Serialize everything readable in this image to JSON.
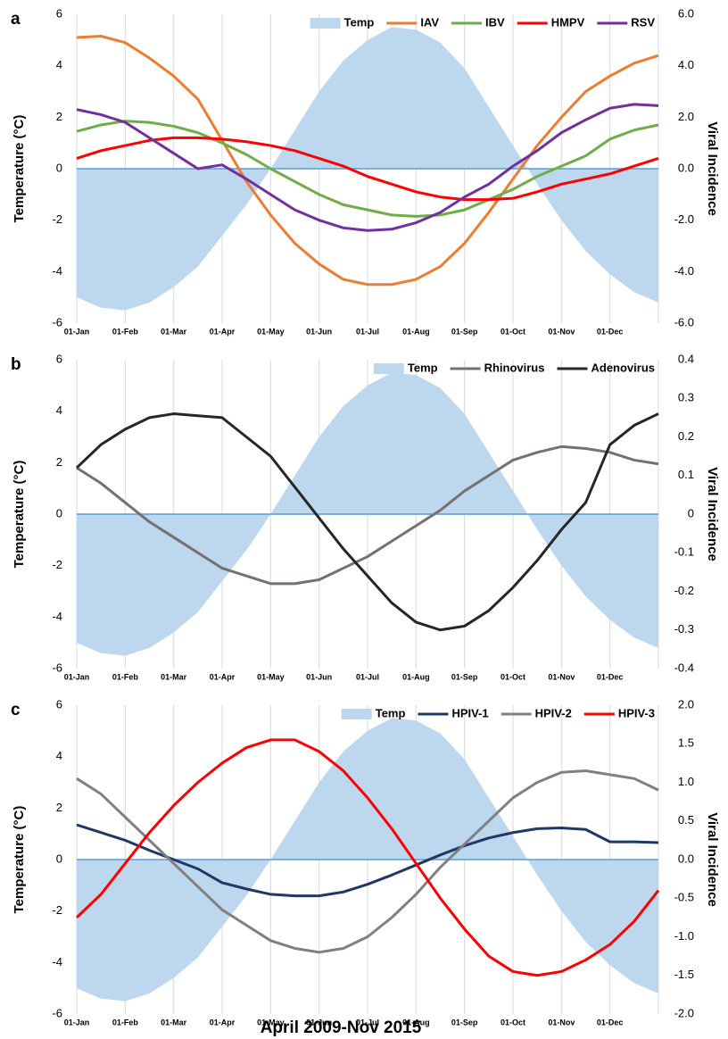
{
  "chart_data": [
    {
      "type": "line",
      "panel": "a",
      "ylabel": "Temperature (°C)",
      "y2label": "Viral Incidence",
      "grid": "x",
      "legend": "top-right",
      "categories": [
        "01-Jan",
        null,
        "01-Feb",
        null,
        "01-Mar",
        null,
        "01-Apr",
        null,
        "01-May",
        null,
        "01-Jun",
        null,
        "01-Jul",
        null,
        "01-Aug",
        null,
        "01-Sep",
        null,
        "01-Oct",
        null,
        "01-Nov",
        null,
        "01-Dec",
        null,
        null
      ],
      "ylim": [
        -6,
        6
      ],
      "yticks": [
        -6,
        -4,
        -2,
        0,
        2,
        4,
        6
      ],
      "y2lim": [
        -6,
        6
      ],
      "y2ticks": [
        {
          "value": -6,
          "label": "-6.0"
        },
        {
          "value": -4,
          "label": "-4.0"
        },
        {
          "value": -2,
          "label": "-2.0"
        },
        {
          "value": 0,
          "label": "0.0"
        },
        {
          "value": 2,
          "label": "2.0"
        },
        {
          "value": 4,
          "label": "4.0"
        },
        {
          "value": 6,
          "label": "6.0"
        }
      ],
      "series": [
        {
          "name": "Temp",
          "kind": "area",
          "color": "#bdd7ee",
          "values": [
            -5.0,
            -5.4,
            -5.5,
            -5.2,
            -4.6,
            -3.8,
            -2.6,
            -1.4,
            0.0,
            1.5,
            3.0,
            4.2,
            5.0,
            5.5,
            5.4,
            4.9,
            3.9,
            2.4,
            0.9,
            -0.6,
            -2.0,
            -3.2,
            -4.1,
            -4.8,
            -5.2
          ]
        },
        {
          "name": "IAV",
          "color": "#ed7d31",
          "axis": "y2",
          "values": [
            5.1,
            5.15,
            4.9,
            4.3,
            3.6,
            2.7,
            1.1,
            -0.5,
            -1.8,
            -2.9,
            -3.7,
            -4.3,
            -4.5,
            -4.5,
            -4.3,
            -3.8,
            -2.9,
            -1.7,
            -0.4,
            0.9,
            2.0,
            3.0,
            3.6,
            4.1,
            4.4
          ]
        },
        {
          "name": "IBV",
          "color": "#70ad47",
          "axis": "y2",
          "values": [
            1.45,
            1.7,
            1.85,
            1.8,
            1.65,
            1.4,
            1.0,
            0.55,
            0.0,
            -0.5,
            -1.0,
            -1.4,
            -1.6,
            -1.8,
            -1.85,
            -1.8,
            -1.6,
            -1.2,
            -0.8,
            -0.3,
            0.1,
            0.5,
            1.15,
            1.5,
            1.7
          ]
        },
        {
          "name": "HMPV",
          "color": "#ff0000",
          "axis": "y2",
          "values": [
            0.4,
            0.7,
            0.9,
            1.1,
            1.2,
            1.2,
            1.15,
            1.05,
            0.9,
            0.7,
            0.4,
            0.1,
            -0.3,
            -0.6,
            -0.9,
            -1.1,
            -1.2,
            -1.2,
            -1.15,
            -0.9,
            -0.6,
            -0.4,
            -0.2,
            0.1,
            0.4
          ]
        },
        {
          "name": "RSV",
          "color": "#7030a0",
          "axis": "y2",
          "values": [
            2.3,
            2.1,
            1.8,
            1.2,
            0.6,
            0.0,
            0.15,
            -0.4,
            -1.0,
            -1.6,
            -2.0,
            -2.3,
            -2.4,
            -2.35,
            -2.1,
            -1.7,
            -1.1,
            -0.6,
            0.1,
            0.7,
            1.4,
            1.9,
            2.35,
            2.5,
            2.45
          ]
        }
      ]
    },
    {
      "type": "line",
      "panel": "b",
      "ylabel": "Temperature (°C)",
      "y2label": "Viral Incidence",
      "grid": "x",
      "legend": "top-right",
      "categories": [
        "01-Jan",
        null,
        "01-Feb",
        null,
        "01-Mar",
        null,
        "01-Apr",
        null,
        "01-May",
        null,
        "01-Jun",
        null,
        "01-Jul",
        null,
        "01-Aug",
        null,
        "01-Sep",
        null,
        "01-Oct",
        null,
        "01-Nov",
        null,
        "01-Dec",
        null,
        null
      ],
      "ylim": [
        -6,
        6
      ],
      "yticks": [
        -6,
        -4,
        -2,
        0,
        2,
        4,
        6
      ],
      "y2lim": [
        -0.4,
        0.4
      ],
      "y2ticks": [
        -0.4,
        -0.3,
        -0.2,
        -0.1,
        0,
        0.1,
        0.2,
        0.3,
        0.4
      ],
      "series": [
        {
          "name": "Temp",
          "kind": "area",
          "color": "#bdd7ee",
          "values": [
            -5.0,
            -5.4,
            -5.5,
            -5.2,
            -4.6,
            -3.8,
            -2.6,
            -1.4,
            0.0,
            1.5,
            3.0,
            4.2,
            5.0,
            5.5,
            5.4,
            4.9,
            3.9,
            2.4,
            0.9,
            -0.6,
            -2.0,
            -3.2,
            -4.1,
            -4.8,
            -5.2
          ]
        },
        {
          "name": "Rhinovirus",
          "color": "#767171",
          "axis": "y2",
          "values": [
            0.12,
            0.08,
            0.03,
            -0.02,
            -0.06,
            -0.1,
            -0.14,
            -0.16,
            -0.18,
            -0.18,
            -0.17,
            -0.14,
            -0.11,
            -0.07,
            -0.03,
            0.01,
            0.06,
            0.1,
            0.14,
            0.16,
            0.175,
            0.17,
            0.16,
            0.14,
            0.13
          ]
        },
        {
          "name": "Adenovirus",
          "color": "#262626",
          "axis": "y2",
          "values": [
            0.12,
            0.18,
            0.22,
            0.25,
            0.26,
            0.255,
            0.25,
            0.2,
            0.15,
            0.07,
            -0.01,
            -0.09,
            -0.16,
            -0.23,
            -0.28,
            -0.3,
            -0.29,
            -0.25,
            -0.19,
            -0.12,
            -0.04,
            0.03,
            0.18,
            0.23,
            0.26
          ]
        }
      ]
    },
    {
      "type": "line",
      "panel": "c",
      "ylabel": "Temperature (°C)",
      "y2label": "Viral Incidence",
      "grid": "x",
      "legend": "top-right",
      "categories": [
        "01-Jan",
        null,
        "01-Feb",
        null,
        "01-Mar",
        null,
        "01-Apr",
        null,
        "01-May",
        null,
        "01-Jun",
        null,
        "01-Jul",
        null,
        "01-Aug",
        null,
        "01-Sep",
        null,
        "01-Oct",
        null,
        "01-Nov",
        null,
        "01-Dec",
        null,
        null
      ],
      "ylim": [
        -6,
        6
      ],
      "yticks": [
        -6,
        -4,
        -2,
        0,
        2,
        4,
        6
      ],
      "y2lim": [
        -2,
        2
      ],
      "y2ticks": [
        {
          "value": -2,
          "label": "-2.0"
        },
        {
          "value": -1.5,
          "label": "-1.5"
        },
        {
          "value": -1,
          "label": "-1.0"
        },
        {
          "value": -0.5,
          "label": "-0.5"
        },
        {
          "value": 0,
          "label": "0.0"
        },
        {
          "value": 0.5,
          "label": "0.5"
        },
        {
          "value": 1,
          "label": "1.0"
        },
        {
          "value": 1.5,
          "label": "1.5"
        },
        {
          "value": 2,
          "label": "2.0"
        }
      ],
      "series": [
        {
          "name": "Temp",
          "kind": "area",
          "color": "#bdd7ee",
          "values": [
            -5.0,
            -5.4,
            -5.5,
            -5.2,
            -4.6,
            -3.8,
            -2.6,
            -1.4,
            0.0,
            1.5,
            3.0,
            4.2,
            5.0,
            5.5,
            5.4,
            4.9,
            3.9,
            2.4,
            0.9,
            -0.6,
            -2.0,
            -3.2,
            -4.1,
            -4.8,
            -5.2
          ]
        },
        {
          "name": "HPIV-1",
          "color": "#203864",
          "axis": "y2",
          "values": [
            0.45,
            0.35,
            0.25,
            0.12,
            0.0,
            -0.12,
            -0.3,
            -0.38,
            -0.45,
            -0.47,
            -0.47,
            -0.42,
            -0.32,
            -0.2,
            -0.07,
            0.06,
            0.18,
            0.28,
            0.35,
            0.4,
            0.41,
            0.39,
            0.23,
            0.23,
            0.22
          ]
        },
        {
          "name": "HPIV-2",
          "color": "#808080",
          "axis": "y2",
          "values": [
            1.05,
            0.85,
            0.55,
            0.25,
            -0.05,
            -0.35,
            -0.65,
            -0.85,
            -1.05,
            -1.15,
            -1.2,
            -1.15,
            -1.0,
            -0.75,
            -0.45,
            -0.1,
            0.2,
            0.5,
            0.8,
            1.0,
            1.13,
            1.15,
            1.1,
            1.05,
            0.9
          ]
        },
        {
          "name": "HPIV-3",
          "color": "#ff0000",
          "axis": "y2",
          "values": [
            -0.75,
            -0.45,
            -0.05,
            0.35,
            0.7,
            1.0,
            1.25,
            1.45,
            1.55,
            1.55,
            1.4,
            1.15,
            0.8,
            0.4,
            -0.05,
            -0.5,
            -0.9,
            -1.25,
            -1.45,
            -1.5,
            -1.45,
            -1.3,
            -1.1,
            -0.8,
            -0.4
          ]
        }
      ]
    }
  ],
  "footer": "April 2009-Nov 2015"
}
